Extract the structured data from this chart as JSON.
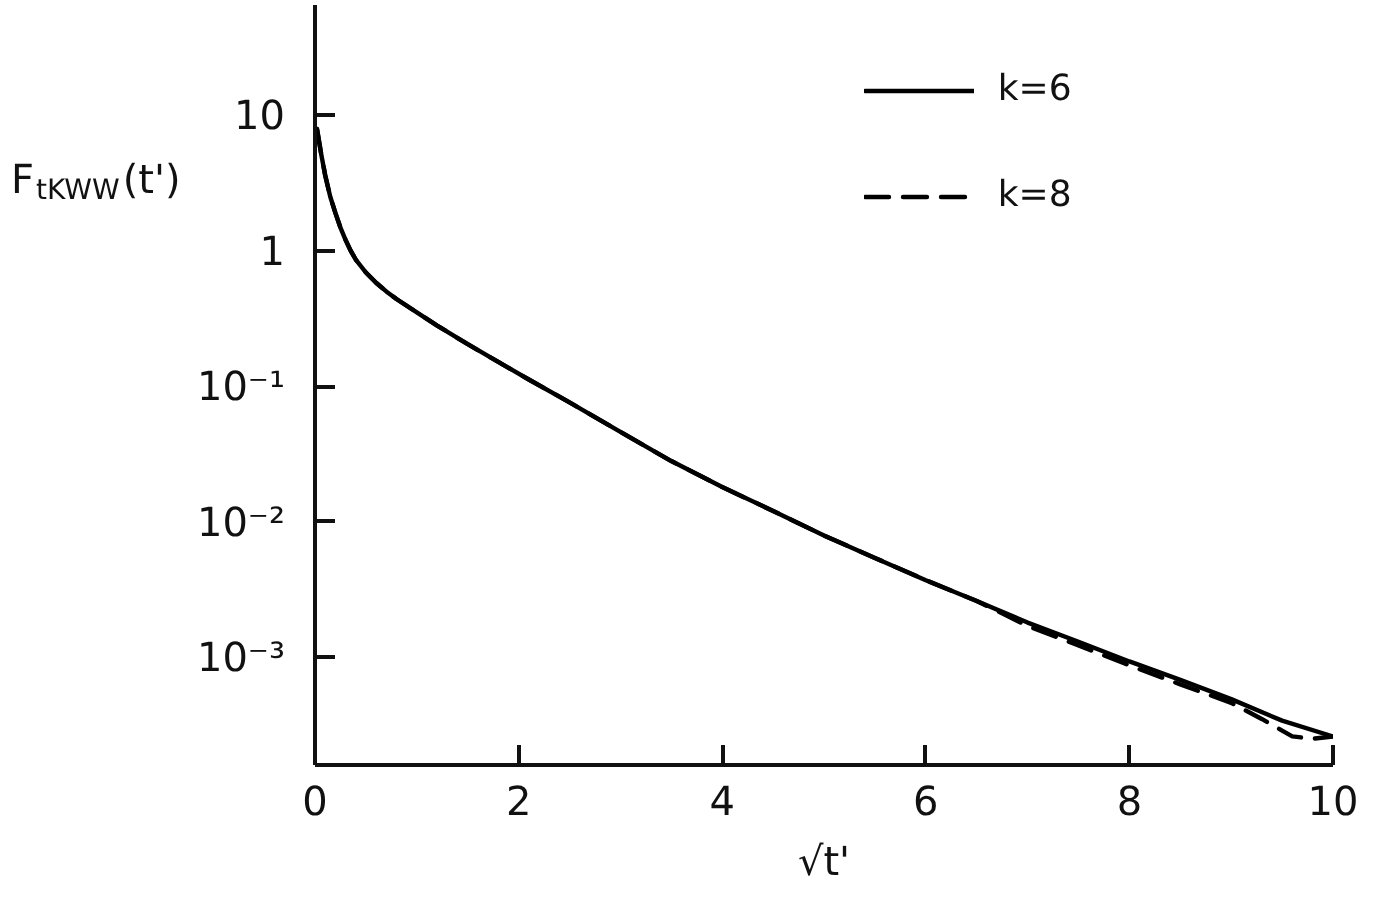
{
  "chart_data": {
    "type": "line",
    "xlabel": "√t'",
    "ylabel": "F$_{tKWW}$(t')",
    "log": "y",
    "xlim": [
      0,
      10
    ],
    "ylim": [
      0.00016,
      65
    ],
    "xticks": [
      0,
      2,
      4,
      6,
      8,
      10
    ],
    "yticks": [
      10,
      1,
      {
        "value": 0.1,
        "label": "10⁻¹"
      },
      {
        "value": 0.01,
        "label": "10⁻²"
      },
      {
        "value": 0.001,
        "label": "10⁻³"
      }
    ],
    "legend": "top right",
    "series": [
      {
        "name": "k=6",
        "color": "#000000",
        "line_style": "solid",
        "x": [
          0.02,
          0.06,
          0.1,
          0.15,
          0.2,
          0.25,
          0.3,
          0.35,
          0.4,
          0.5,
          0.6,
          0.7,
          0.8,
          1,
          1.2,
          1.5,
          1.8,
          2.1,
          2.5,
          3,
          3.5,
          4,
          4.5,
          5,
          5.5,
          6,
          6.5,
          7,
          7.5,
          8,
          8.5,
          9,
          9.5,
          10
        ],
        "values": [
          7.9,
          5.2,
          3.6,
          2.5,
          1.9,
          1.48,
          1.2,
          1.0,
          0.86,
          0.69,
          0.58,
          0.5,
          0.44,
          0.35,
          0.28,
          0.204,
          0.151,
          0.112,
          0.076,
          0.046,
          0.028,
          0.018,
          0.012,
          0.0079,
          0.0054,
          0.0037,
          0.0026,
          0.0018,
          0.0013,
          0.00093,
          0.00068,
          0.00049,
          0.00034,
          0.00026
        ]
      },
      {
        "name": "k=8",
        "color": "#000000",
        "line_style": "dashed",
        "x": [
          0.02,
          0.06,
          0.1,
          0.15,
          0.2,
          0.25,
          0.3,
          0.35,
          0.4,
          0.5,
          0.6,
          0.7,
          0.8,
          1,
          1.2,
          1.5,
          1.8,
          2.1,
          2.5,
          3,
          3.5,
          4,
          4.5,
          5,
          5.5,
          6,
          6.5,
          7,
          7.5,
          8,
          8.5,
          9,
          9.3,
          9.6,
          9.8,
          10
        ],
        "values": [
          7.9,
          5.2,
          3.6,
          2.5,
          1.9,
          1.48,
          1.2,
          1.0,
          0.86,
          0.69,
          0.58,
          0.5,
          0.44,
          0.35,
          0.28,
          0.204,
          0.151,
          0.112,
          0.076,
          0.046,
          0.028,
          0.018,
          0.012,
          0.0079,
          0.0054,
          0.0037,
          0.0026,
          0.0017,
          0.00122,
          0.00087,
          0.00063,
          0.00046,
          0.00035,
          0.00026,
          0.00025,
          0.00026
        ]
      }
    ]
  }
}
